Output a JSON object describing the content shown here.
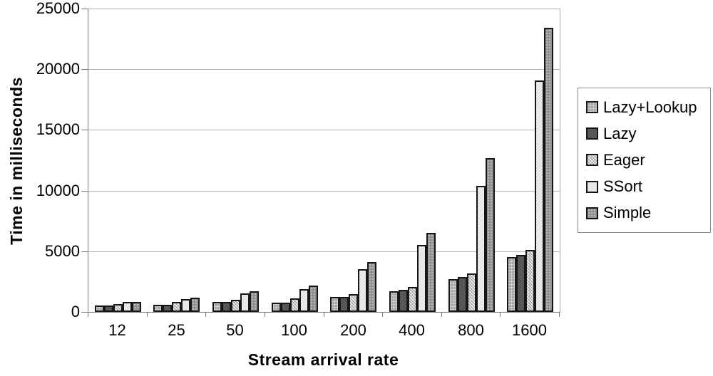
{
  "chart_data": {
    "type": "bar",
    "title": "",
    "xlabel": "Stream arrival rate",
    "ylabel": "Time in milliseconds",
    "categories": [
      "12",
      "25",
      "50",
      "100",
      "200",
      "400",
      "800",
      "1600"
    ],
    "series": [
      {
        "name": "Lazy+Lookup",
        "fill": "#a8a8a8",
        "pattern": "gray-grid",
        "values": [
          500,
          600,
          800,
          750,
          1250,
          1700,
          2700,
          4500
        ]
      },
      {
        "name": "Lazy",
        "fill": "#4e4e4e",
        "pattern": "dark-diagonal",
        "values": [
          500,
          600,
          800,
          750,
          1250,
          1800,
          2850,
          4700
        ]
      },
      {
        "name": "Eager",
        "fill": "#fdfdfd",
        "pattern": "diagonal-crosshatch",
        "values": [
          650,
          800,
          1000,
          1100,
          1450,
          2050,
          3150,
          5100
        ]
      },
      {
        "name": "SSort",
        "fill": "#f1f1f1",
        "pattern": "light-diagonal",
        "values": [
          800,
          1050,
          1550,
          1900,
          3500,
          5500,
          10400,
          19100
        ]
      },
      {
        "name": "Simple",
        "fill": "#919191",
        "pattern": "gray-dots",
        "values": [
          800,
          1150,
          1700,
          2150,
          4100,
          6500,
          12700,
          23400
        ]
      }
    ],
    "ylim": [
      0,
      25000
    ],
    "ytick_step": 5000,
    "yticks": [
      "0",
      "5000",
      "10000",
      "15000",
      "20000",
      "25000"
    ],
    "grid": true,
    "legend_position": "right",
    "colors": {
      "axis": "#7a7a7a",
      "gridline": "#b3b3b3",
      "bar_border": "#161616",
      "legend_border": "#8c8c8c",
      "text": "#000000"
    }
  }
}
